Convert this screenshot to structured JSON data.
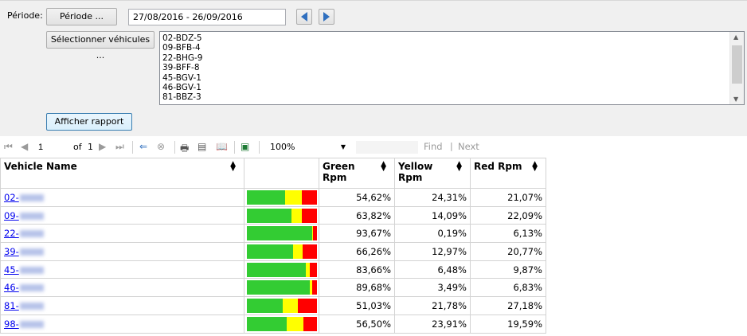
{
  "params": {
    "periode_label": "Période:",
    "periode_button": "Période ...",
    "periode_value": "27/08/2016 - 26/09/2016",
    "select_vehicles_button": "Sélectionner véhicules ...",
    "vehicles_list": [
      "02-BDZ-5",
      "09-BFB-4",
      "22-BHG-9",
      "39-BFF-8",
      "45-BGV-1",
      "46-BGV-1",
      "81-BBZ-3"
    ],
    "show_report_button": "Afficher rapport"
  },
  "toolbar": {
    "page_current": "1",
    "page_of": "of",
    "page_total": "1",
    "zoom": "100%",
    "find_label": "Find",
    "find_separator": "|",
    "next_label": "Next"
  },
  "colors": {
    "green": "#33cc33",
    "yellow": "#ffff00",
    "red": "#ff0000"
  },
  "table": {
    "headers": {
      "vehicle_name": "Vehicle Name",
      "green": "Green Rpm",
      "yellow": "Yellow Rpm",
      "red": "Red Rpm"
    },
    "rows": [
      {
        "prefix": "02-",
        "green": "54,62%",
        "yellow": "24,31%",
        "red": "21,07%",
        "g": 54.62,
        "y": 24.31,
        "r": 21.07
      },
      {
        "prefix": "09-",
        "green": "63,82%",
        "yellow": "14,09%",
        "red": "22,09%",
        "g": 63.82,
        "y": 14.09,
        "r": 22.09
      },
      {
        "prefix": "22-",
        "green": "93,67%",
        "yellow": "0,19%",
        "red": "6,13%",
        "g": 93.67,
        "y": 0.19,
        "r": 6.13
      },
      {
        "prefix": "39-",
        "green": "66,26%",
        "yellow": "12,97%",
        "red": "20,77%",
        "g": 66.26,
        "y": 12.97,
        "r": 20.77
      },
      {
        "prefix": "45-",
        "green": "83,66%",
        "yellow": "6,48%",
        "red": "9,87%",
        "g": 83.66,
        "y": 6.48,
        "r": 9.87
      },
      {
        "prefix": "46-",
        "green": "89,68%",
        "yellow": "3,49%",
        "red": "6,83%",
        "g": 89.68,
        "y": 3.49,
        "r": 6.83
      },
      {
        "prefix": "81-",
        "green": "51,03%",
        "yellow": "21,78%",
        "red": "27,18%",
        "g": 51.03,
        "y": 21.78,
        "r": 27.18
      },
      {
        "prefix": "98-",
        "green": "56,50%",
        "yellow": "23,91%",
        "red": "19,59%",
        "g": 56.5,
        "y": 23.91,
        "r": 19.59
      }
    ]
  }
}
